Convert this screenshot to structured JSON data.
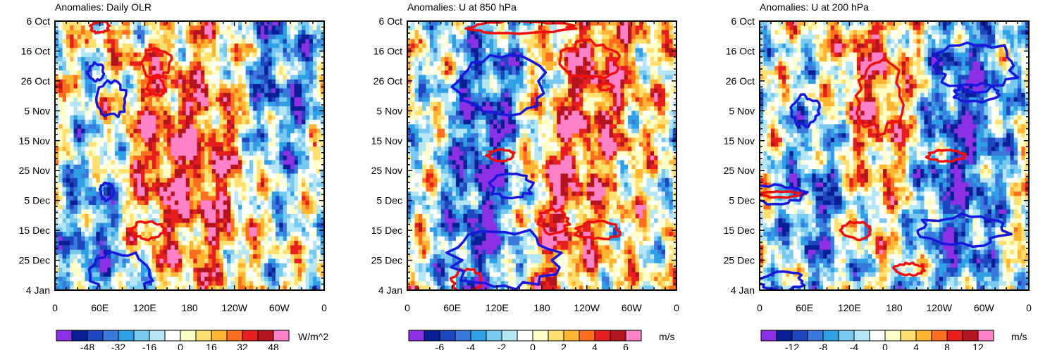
{
  "chart_data": [
    {
      "type": "heatmap",
      "title": "Anomalies: Daily OLR",
      "variable": "OLR",
      "units": "W/m^2",
      "xlabel": "",
      "ylabel": "",
      "x_tick_labels": [
        "0",
        "60E",
        "120E",
        "180",
        "120W",
        "60W",
        "0"
      ],
      "x_tick_lon": [
        0,
        60,
        120,
        180,
        240,
        300,
        360
      ],
      "y_tick_labels": [
        "6 Oct",
        "16 Oct",
        "26 Oct",
        "5 Nov",
        "15 Nov",
        "25 Nov",
        "5 Dec",
        "15 Dec",
        "25 Dec",
        "4 Jan"
      ],
      "y_tick_day": [
        0,
        10,
        20,
        30,
        40,
        50,
        60,
        70,
        80,
        90
      ],
      "ylim_days": [
        0,
        90
      ],
      "colorbar_levels": [
        -56,
        -48,
        -40,
        -32,
        -24,
        -16,
        -8,
        0,
        8,
        16,
        24,
        32,
        40,
        48,
        56
      ],
      "colorbar_labels": [
        "-48",
        "-32",
        "-16",
        "0",
        "16",
        "32",
        "48"
      ],
      "colorbar_label_values": [
        -48,
        -32,
        -16,
        0,
        16,
        32,
        48
      ],
      "bands": [
        {
          "lon": 60,
          "day": 75,
          "polarity": -1
        },
        {
          "lon": 130,
          "day": 45,
          "polarity": 1
        },
        {
          "lon": 210,
          "day": 50,
          "polarity": 1
        },
        {
          "lon": 300,
          "day": 20,
          "polarity": -1
        }
      ],
      "contours": [
        {
          "polarity": 1,
          "lon": 135,
          "day": 14,
          "dlon": 20,
          "dday": 5
        },
        {
          "polarity": 1,
          "lon": 135,
          "day": 22,
          "dlon": 12,
          "dday": 3
        },
        {
          "polarity": 1,
          "lon": 125,
          "day": 70,
          "dlon": 22,
          "dday": 3
        },
        {
          "polarity": 1,
          "lon": 60,
          "day": 2,
          "dlon": 12,
          "dday": 2
        },
        {
          "polarity": -1,
          "lon": 55,
          "day": 17,
          "dlon": 10,
          "dday": 3
        },
        {
          "polarity": -1,
          "lon": 75,
          "day": 26,
          "dlon": 20,
          "dday": 6
        },
        {
          "polarity": -1,
          "lon": 70,
          "day": 57,
          "dlon": 10,
          "dday": 3
        },
        {
          "polarity": -1,
          "lon": 90,
          "day": 85,
          "dlon": 40,
          "dday": 8
        }
      ]
    },
    {
      "type": "heatmap",
      "title": "Anomalies: U at 850 hPa",
      "variable": "U850",
      "units": "m/s",
      "xlabel": "",
      "ylabel": "",
      "x_tick_labels": [
        "0",
        "60E",
        "120E",
        "180",
        "120W",
        "60W",
        "0"
      ],
      "x_tick_lon": [
        0,
        60,
        120,
        180,
        240,
        300,
        360
      ],
      "y_tick_labels": [
        "6 Oct",
        "16 Oct",
        "26 Oct",
        "5 Nov",
        "15 Nov",
        "25 Nov",
        "5 Dec",
        "15 Dec",
        "25 Dec",
        "4 Jan"
      ],
      "y_tick_day": [
        0,
        10,
        20,
        30,
        40,
        50,
        60,
        70,
        80,
        90
      ],
      "ylim_days": [
        0,
        90
      ],
      "colorbar_levels": [
        -7,
        -6,
        -5,
        -4,
        -3,
        -2,
        -1,
        0,
        1,
        2,
        3,
        4,
        5,
        6,
        7
      ],
      "colorbar_labels": [
        "-6",
        "-4",
        "-2",
        "0",
        "2",
        "4",
        "6"
      ],
      "colorbar_label_values": [
        -6,
        -4,
        -2,
        0,
        2,
        4,
        6
      ],
      "bands": [
        {
          "lon": 110,
          "day": 30,
          "polarity": -1
        },
        {
          "lon": 100,
          "day": 75,
          "polarity": -1
        },
        {
          "lon": 200,
          "day": 65,
          "polarity": 1
        },
        {
          "lon": 260,
          "day": 15,
          "polarity": 1
        }
      ],
      "contours": [
        {
          "polarity": 1,
          "lon": 245,
          "day": 13,
          "dlon": 40,
          "dday": 6
        },
        {
          "polarity": 1,
          "lon": 265,
          "day": 22,
          "dlon": 10,
          "dday": 1
        },
        {
          "polarity": 1,
          "lon": 125,
          "day": 45,
          "dlon": 18,
          "dday": 2
        },
        {
          "polarity": 1,
          "lon": 195,
          "day": 67,
          "dlon": 20,
          "dday": 4
        },
        {
          "polarity": 1,
          "lon": 255,
          "day": 70,
          "dlon": 30,
          "dday": 3
        },
        {
          "polarity": 1,
          "lon": 80,
          "day": 87,
          "dlon": 20,
          "dday": 4
        },
        {
          "polarity": 1,
          "lon": 150,
          "day": 2,
          "dlon": 70,
          "dday": 2
        },
        {
          "polarity": -1,
          "lon": 125,
          "day": 22,
          "dlon": 60,
          "dday": 10
        },
        {
          "polarity": -1,
          "lon": 140,
          "day": 55,
          "dlon": 30,
          "dday": 4
        },
        {
          "polarity": -1,
          "lon": 130,
          "day": 80,
          "dlon": 70,
          "dday": 10
        }
      ]
    },
    {
      "type": "heatmap",
      "title": "Anomalies: U at 200 hPa",
      "variable": "U200",
      "units": "m/s",
      "xlabel": "",
      "ylabel": "",
      "x_tick_labels": [
        "0",
        "60E",
        "120E",
        "180",
        "120W",
        "60W",
        "0"
      ],
      "x_tick_lon": [
        0,
        60,
        120,
        180,
        240,
        300,
        360
      ],
      "y_tick_labels": [
        "6 Oct",
        "16 Oct",
        "26 Oct",
        "5 Nov",
        "15 Nov",
        "25 Nov",
        "5 Dec",
        "15 Dec",
        "25 Dec",
        "4 Jan"
      ],
      "y_tick_day": [
        0,
        10,
        20,
        30,
        40,
        50,
        60,
        70,
        80,
        90
      ],
      "ylim_days": [
        0,
        90
      ],
      "colorbar_levels": [
        -14,
        -12,
        -10,
        -8,
        -6,
        -4,
        -2,
        0,
        2,
        4,
        6,
        8,
        10,
        12,
        14
      ],
      "colorbar_labels": [
        "-12",
        "-8",
        "-4",
        "0",
        "4",
        "8",
        "12"
      ],
      "colorbar_label_values": [
        -12,
        -8,
        -4,
        0,
        4,
        8,
        12
      ],
      "bands": [
        {
          "lon": 80,
          "day": 60,
          "polarity": -1
        },
        {
          "lon": 150,
          "day": 25,
          "polarity": 1
        },
        {
          "lon": 280,
          "day": 20,
          "polarity": -1
        },
        {
          "lon": 260,
          "day": 70,
          "polarity": -1
        }
      ],
      "contours": [
        {
          "polarity": 1,
          "lon": 160,
          "day": 25,
          "dlon": 30,
          "dday": 12
        },
        {
          "polarity": 1,
          "lon": 250,
          "day": 45,
          "dlon": 25,
          "dday": 2
        },
        {
          "polarity": 1,
          "lon": 130,
          "day": 70,
          "dlon": 20,
          "dday": 3
        },
        {
          "polarity": 1,
          "lon": 200,
          "day": 83,
          "dlon": 20,
          "dday": 2
        },
        {
          "polarity": 1,
          "lon": 30,
          "day": 58,
          "dlon": 30,
          "dday": 1
        },
        {
          "polarity": -1,
          "lon": 290,
          "day": 15,
          "dlon": 55,
          "dday": 8
        },
        {
          "polarity": -1,
          "lon": 290,
          "day": 24,
          "dlon": 30,
          "dday": 3
        },
        {
          "polarity": -1,
          "lon": 20,
          "day": 58,
          "dlon": 40,
          "dday": 3
        },
        {
          "polarity": -1,
          "lon": 270,
          "day": 70,
          "dlon": 60,
          "dday": 5
        },
        {
          "polarity": -1,
          "lon": 60,
          "day": 30,
          "dlon": 20,
          "dday": 5
        },
        {
          "polarity": -1,
          "lon": 30,
          "day": 87,
          "dlon": 30,
          "dday": 3
        }
      ]
    }
  ],
  "colorbar_colors": [
    "#8c30e6",
    "#0a1e96",
    "#1e46be",
    "#3c78dc",
    "#30a0e6",
    "#78c8f0",
    "#b4e6f6",
    "#ffffff",
    "#ffffc8",
    "#ffe070",
    "#ffb432",
    "#ff6e1e",
    "#e61e1e",
    "#b4141e",
    "#ff82c8"
  ],
  "contour_colors": {
    "positive": "#ee1010",
    "negative": "#1818dd"
  }
}
